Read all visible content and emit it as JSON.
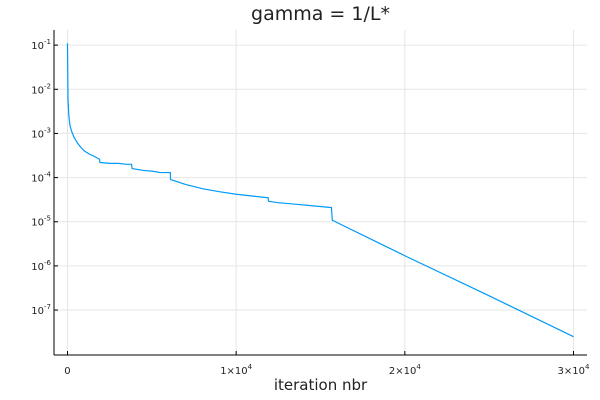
{
  "chart_data": {
    "type": "line",
    "title": "gamma = 1/L*",
    "xlabel": "iteration nbr",
    "ylabel": "",
    "yscale": "log",
    "xlim": [
      -800,
      30800
    ],
    "ylim": [
      9.6e-09,
      0.22
    ],
    "grid": true,
    "legend": "none",
    "colors": {
      "series": "#009af9",
      "axis": "#000000",
      "grid": "#e6e6e6",
      "text": "#222222"
    },
    "x_ticks": [
      {
        "value": 0,
        "base": "0",
        "exp": ""
      },
      {
        "value": 10000,
        "base": "1×10",
        "exp": "4"
      },
      {
        "value": 20000,
        "base": "2×10",
        "exp": "4"
      },
      {
        "value": 30000,
        "base": "3×10",
        "exp": "4"
      }
    ],
    "y_ticks": [
      {
        "value": 0.1,
        "base": "10",
        "exp": "-1"
      },
      {
        "value": 0.01,
        "base": "10",
        "exp": "-2"
      },
      {
        "value": 0.001,
        "base": "10",
        "exp": "-3"
      },
      {
        "value": 0.0001,
        "base": "10",
        "exp": "-4"
      },
      {
        "value": 1e-05,
        "base": "10",
        "exp": "-5"
      },
      {
        "value": 1e-06,
        "base": "10",
        "exp": "-6"
      },
      {
        "value": 1e-07,
        "base": "10",
        "exp": "-7"
      }
    ],
    "series": [
      {
        "x": [
          0,
          30,
          80,
          150,
          250,
          400,
          600,
          800,
          1000,
          1300,
          1600,
          1900,
          1920,
          2500,
          3000,
          3500,
          3800,
          3830,
          4500,
          5000,
          5500,
          6000,
          6100,
          6110,
          7000,
          8000,
          9000,
          10000,
          11000,
          11900,
          11920,
          12500,
          13500,
          14500,
          15600,
          15650,
          15700,
          20000,
          25000,
          30000
        ],
        "y": [
          0.11,
          0.006,
          0.0025,
          0.0015,
          0.0011,
          0.0008,
          0.0006,
          0.00048,
          0.0004,
          0.00034,
          0.0003,
          0.00026,
          0.00022,
          0.00021,
          0.00021,
          0.0002,
          0.0002,
          0.00016,
          0.000145,
          0.00014,
          0.00013,
          0.00013,
          0.00013,
          9e-05,
          7e-05,
          5.6e-05,
          4.8e-05,
          4.2e-05,
          3.8e-05,
          3.5e-05,
          2.9e-05,
          2.7e-05,
          2.5e-05,
          2.3e-05,
          2.1e-05,
          2.1e-05,
          1.08e-05,
          1.7e-06,
          2.1e-07,
          2.5e-08
        ]
      }
    ]
  }
}
